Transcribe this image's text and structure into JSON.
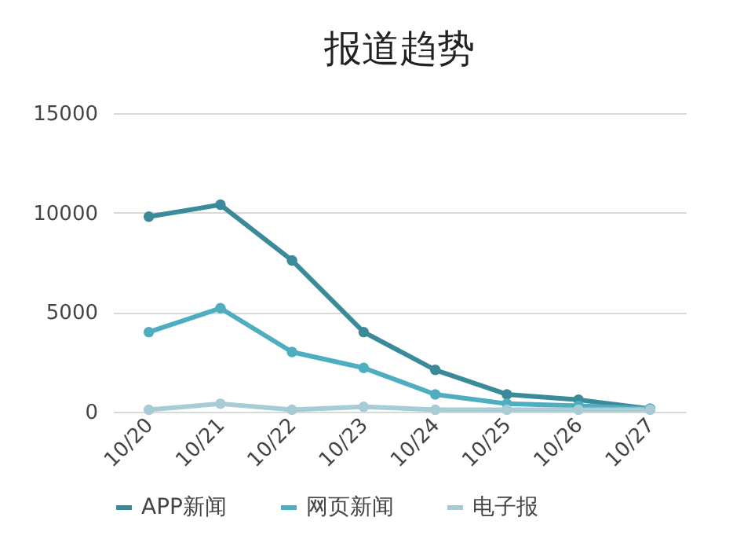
{
  "chart_data": {
    "type": "line",
    "title": "报道趋势",
    "categories": [
      "10/20",
      "10/21",
      "10/22",
      "10/23",
      "10/24",
      "10/25",
      "10/26",
      "10/27"
    ],
    "series": [
      {
        "name": "APP新闻",
        "color": "#3a8a9a",
        "values": [
          9800,
          10400,
          7600,
          4000,
          2100,
          870,
          600,
          150
        ]
      },
      {
        "name": "网页新闻",
        "color": "#4eaec0",
        "values": [
          4000,
          5200,
          3000,
          2200,
          870,
          400,
          300,
          150
        ]
      },
      {
        "name": "电子报",
        "color": "#a8ccd6",
        "values": [
          100,
          400,
          100,
          250,
          100,
          100,
          100,
          100
        ]
      }
    ],
    "ylim": [
      0,
      15000
    ],
    "yticks": [
      0,
      5000,
      10000,
      15000
    ],
    "grid": "y",
    "legend": "bottom",
    "marker": "circle",
    "line_style": "solid"
  }
}
